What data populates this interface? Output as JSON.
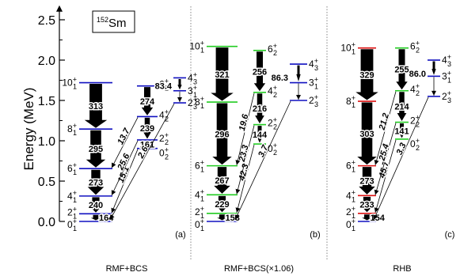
{
  "y_axis": {
    "title": "Energy (MeV)",
    "ticks": [
      {
        "label": "0.0",
        "value": 0.0
      },
      {
        "label": "0.5",
        "value": 0.5
      },
      {
        "label": "1.0",
        "value": 1.0
      },
      {
        "label": "1.5",
        "value": 1.5
      },
      {
        "label": "2.0",
        "value": 2.0
      },
      {
        "label": "2.5",
        "value": 2.5
      }
    ],
    "range": [
      0.0,
      2.6
    ]
  },
  "nucleus": {
    "mass": "152",
    "symbol": "Sm"
  },
  "colors": {
    "band": "#1010c0",
    "highlight_green": "#22cc22",
    "highlight_red": "#dd1111",
    "arrow": "#000000"
  },
  "panels": [
    {
      "label": "(a)",
      "method": "RMF+BCS",
      "ground_band": [
        {
          "J": "0",
          "sub": "1",
          "E": 0.0
        },
        {
          "J": "2",
          "sub": "1",
          "E": 0.095
        },
        {
          "J": "4",
          "sub": "1",
          "E": 0.315
        },
        {
          "J": "6",
          "sub": "1",
          "E": 0.655
        },
        {
          "J": "8",
          "sub": "1",
          "E": 1.145
        },
        {
          "J": "10",
          "sub": "1",
          "E": 1.72
        }
      ],
      "ground_transitions": [
        {
          "from": "2",
          "to": "0",
          "value": "164"
        },
        {
          "from": "4",
          "to": "2",
          "value": "240"
        },
        {
          "from": "6",
          "to": "4",
          "value": "273"
        },
        {
          "from": "8",
          "to": "6",
          "value": "295"
        },
        {
          "from": "10",
          "to": "8",
          "value": "313"
        }
      ],
      "beta_band": [
        {
          "J": "0",
          "sub": "2",
          "E": 0.905
        },
        {
          "J": "2",
          "sub": "2",
          "E": 1.01
        },
        {
          "J": "4",
          "sub": "2",
          "E": 1.3
        },
        {
          "J": "6",
          "sub": "2",
          "E": 1.68
        }
      ],
      "beta_transitions": [
        {
          "from": "2",
          "to": "0",
          "value": "161"
        },
        {
          "from": "4",
          "to": "2",
          "value": "239"
        },
        {
          "from": "6",
          "to": "4",
          "value": "274"
        }
      ],
      "gamma_band": [
        {
          "J": "2",
          "sub": "3",
          "E": 1.47
        },
        {
          "J": "3",
          "sub": "1",
          "E": 1.62
        },
        {
          "J": "4",
          "sub": "3",
          "E": 1.78
        }
      ],
      "gamma_transitions": [
        {
          "from": "4",
          "to": "2",
          "value": "83.4"
        }
      ],
      "interband": [
        {
          "label": "15.1",
          "from": {
            "band": "beta",
            "J": "0"
          },
          "to": {
            "band": "ground",
            "J": "2"
          }
        },
        {
          "label": "25.6",
          "from": {
            "band": "beta",
            "J": "2"
          },
          "to": {
            "band": "ground",
            "J": "4"
          }
        },
        {
          "label": "13.7",
          "from": {
            "band": "beta",
            "J": "4"
          },
          "to": {
            "band": "ground",
            "J": "6"
          }
        },
        {
          "label": "2.6",
          "from": {
            "band": "gamma",
            "J": "2"
          },
          "to": {
            "band": "ground",
            "J": "0"
          }
        }
      ],
      "highlight": ""
    },
    {
      "label": "(b)",
      "method": "RMF+BCS(×1.06)",
      "ground_band": [
        {
          "J": "0",
          "sub": "1",
          "E": 0.0
        },
        {
          "J": "2",
          "sub": "1",
          "E": 0.1
        },
        {
          "J": "4",
          "sub": "1",
          "E": 0.33
        },
        {
          "J": "6",
          "sub": "1",
          "E": 0.69
        },
        {
          "J": "8",
          "sub": "1",
          "E": 1.48
        },
        {
          "J": "10",
          "sub": "1",
          "E": 2.17
        }
      ],
      "ground_transitions": [
        {
          "from": "2",
          "to": "0",
          "value": "153"
        },
        {
          "from": "4",
          "to": "2",
          "value": "229"
        },
        {
          "from": "6",
          "to": "4",
          "value": "267"
        },
        {
          "from": "8",
          "to": "6",
          "value": "296"
        },
        {
          "from": "10",
          "to": "8",
          "value": "321"
        }
      ],
      "beta_band": [
        {
          "J": "0",
          "sub": "2",
          "E": 0.96
        },
        {
          "J": "2",
          "sub": "2",
          "E": 1.2
        },
        {
          "J": "4",
          "sub": "2",
          "E": 1.6
        },
        {
          "J": "6",
          "sub": "2",
          "E": 2.12
        }
      ],
      "beta_transitions": [
        {
          "from": "2",
          "to": "0",
          "value": "144"
        },
        {
          "from": "4",
          "to": "2",
          "value": "216"
        },
        {
          "from": "6",
          "to": "4",
          "value": "256"
        }
      ],
      "gamma_band": [
        {
          "J": "2",
          "sub": "3",
          "E": 1.5
        },
        {
          "J": "3",
          "sub": "1",
          "E": 1.72
        },
        {
          "J": "4",
          "sub": "3",
          "E": 1.95
        }
      ],
      "gamma_transitions": [
        {
          "from": "4",
          "to": "2",
          "value": "86.3"
        }
      ],
      "interband": [
        {
          "label": "42.3",
          "from": {
            "band": "beta",
            "J": "0"
          },
          "to": {
            "band": "ground",
            "J": "2"
          }
        },
        {
          "label": "23.3",
          "from": {
            "band": "beta",
            "J": "2"
          },
          "to": {
            "band": "ground",
            "J": "4"
          }
        },
        {
          "label": "19.6",
          "from": {
            "band": "beta",
            "J": "4"
          },
          "to": {
            "band": "ground",
            "J": "6"
          }
        },
        {
          "label": "3.7",
          "from": {
            "band": "gamma",
            "J": "2"
          },
          "to": {
            "band": "ground",
            "J": "0"
          }
        }
      ],
      "highlight": "green"
    },
    {
      "label": "(c)",
      "method": "RHB",
      "ground_band": [
        {
          "J": "0",
          "sub": "1",
          "E": 0.0
        },
        {
          "J": "2",
          "sub": "1",
          "E": 0.1
        },
        {
          "J": "4",
          "sub": "1",
          "E": 0.32
        },
        {
          "J": "6",
          "sub": "1",
          "E": 0.69
        },
        {
          "J": "8",
          "sub": "1",
          "E": 1.49
        },
        {
          "J": "10",
          "sub": "1",
          "E": 2.15
        }
      ],
      "ground_transitions": [
        {
          "from": "2",
          "to": "0",
          "value": "154"
        },
        {
          "from": "4",
          "to": "2",
          "value": "233"
        },
        {
          "from": "6",
          "to": "4",
          "value": "273"
        },
        {
          "from": "8",
          "to": "6",
          "value": "303"
        },
        {
          "from": "10",
          "to": "8",
          "value": "329"
        }
      ],
      "beta_band": [
        {
          "J": "0",
          "sub": "2",
          "E": 1.02
        },
        {
          "J": "2",
          "sub": "2",
          "E": 1.23
        },
        {
          "J": "4",
          "sub": "2",
          "E": 1.62
        },
        {
          "J": "6",
          "sub": "2",
          "E": 2.15
        }
      ],
      "beta_transitions": [
        {
          "from": "2",
          "to": "0",
          "value": "141"
        },
        {
          "from": "4",
          "to": "2",
          "value": "214"
        },
        {
          "from": "6",
          "to": "4",
          "value": "255"
        }
      ],
      "gamma_band": [
        {
          "J": "2",
          "sub": "3",
          "E": 1.55
        },
        {
          "J": "3",
          "sub": "1",
          "E": 1.8
        },
        {
          "J": "4",
          "sub": "3",
          "E": 2.0
        }
      ],
      "gamma_transitions": [
        {
          "from": "4",
          "to": "2",
          "value": "86.0"
        }
      ],
      "interband": [
        {
          "label": "45.7",
          "from": {
            "band": "beta",
            "J": "0"
          },
          "to": {
            "band": "ground",
            "J": "2"
          }
        },
        {
          "label": "25.4",
          "from": {
            "band": "beta",
            "J": "2"
          },
          "to": {
            "band": "ground",
            "J": "4"
          }
        },
        {
          "label": "21.2",
          "from": {
            "band": "beta",
            "J": "4"
          },
          "to": {
            "band": "ground",
            "J": "6"
          }
        },
        {
          "label": "3.3",
          "from": {
            "band": "gamma",
            "J": "2"
          },
          "to": {
            "band": "ground",
            "J": "0"
          }
        }
      ],
      "highlight": "red"
    }
  ]
}
